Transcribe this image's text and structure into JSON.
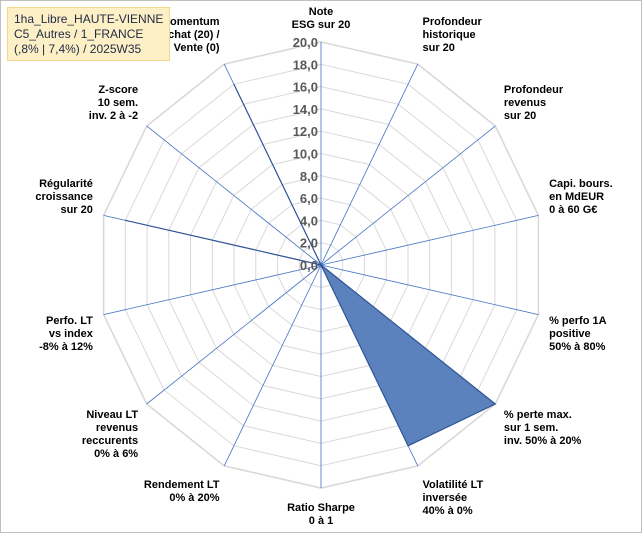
{
  "info_box": {
    "lines": [
      "1ha_Libre_HAUTE-VIENNE",
      "C5_Autres / 1_FRANCE",
      "(,8% | 7,4%) / 2025W35"
    ]
  },
  "colors": {
    "fill": "#4a74b6",
    "stroke": "#2f5597",
    "grid": "#d9d9d9",
    "spoke": "#4472c4"
  },
  "chart_data": {
    "type": "radar",
    "rmin": 0,
    "rmax": 20,
    "ticks": [
      "0,0",
      "2,0",
      "4,0",
      "6,0",
      "8,0",
      "10,0",
      "12,0",
      "14,0",
      "16,0",
      "18,0",
      "20,0"
    ],
    "tick_values": [
      0,
      2,
      4,
      6,
      8,
      10,
      12,
      14,
      16,
      18,
      20
    ],
    "axes": [
      {
        "label": [
          "Note",
          "ESG sur 20"
        ],
        "value": 0
      },
      {
        "label": [
          "Profondeur",
          "historique",
          "sur 20"
        ],
        "value": 0
      },
      {
        "label": [
          "Profondeur",
          "revenus",
          "sur 20"
        ],
        "value": 0
      },
      {
        "label": [
          "Capi. bours.",
          "en MdEUR",
          "0 à 60 G€"
        ],
        "value": 0
      },
      {
        "label": [
          "% perfo 1A",
          "positive",
          "50% à 80%"
        ],
        "value": 0
      },
      {
        "label": [
          "% perte max.",
          "sur 1 sem.",
          "inv. 50% à 20%"
        ],
        "value": 20
      },
      {
        "label": [
          "Volatilité LT",
          "inversée",
          "40% à 0%"
        ],
        "value": 18
      },
      {
        "label": [
          "Ratio Sharpe",
          "0 à 1"
        ],
        "value": 0
      },
      {
        "label": [
          "Rendement LT",
          "0% à 20%"
        ],
        "value": 0
      },
      {
        "label": [
          "Niveau LT",
          "revenus",
          "reccurents",
          "0% à 6%"
        ],
        "value": 0
      },
      {
        "label": [
          "Perfo. LT",
          "vs index",
          "-8% à 12%"
        ],
        "value": 0
      },
      {
        "label": [
          "Régularité",
          "croissance",
          "sur 20"
        ],
        "value": 18
      },
      {
        "label": [
          "Z-score",
          "10 sem.",
          "inv. 2 à -2"
        ],
        "value": 0
      },
      {
        "label": [
          "Momentum",
          "Achat (20) /",
          "Vente (0)"
        ],
        "value": 18
      }
    ]
  }
}
